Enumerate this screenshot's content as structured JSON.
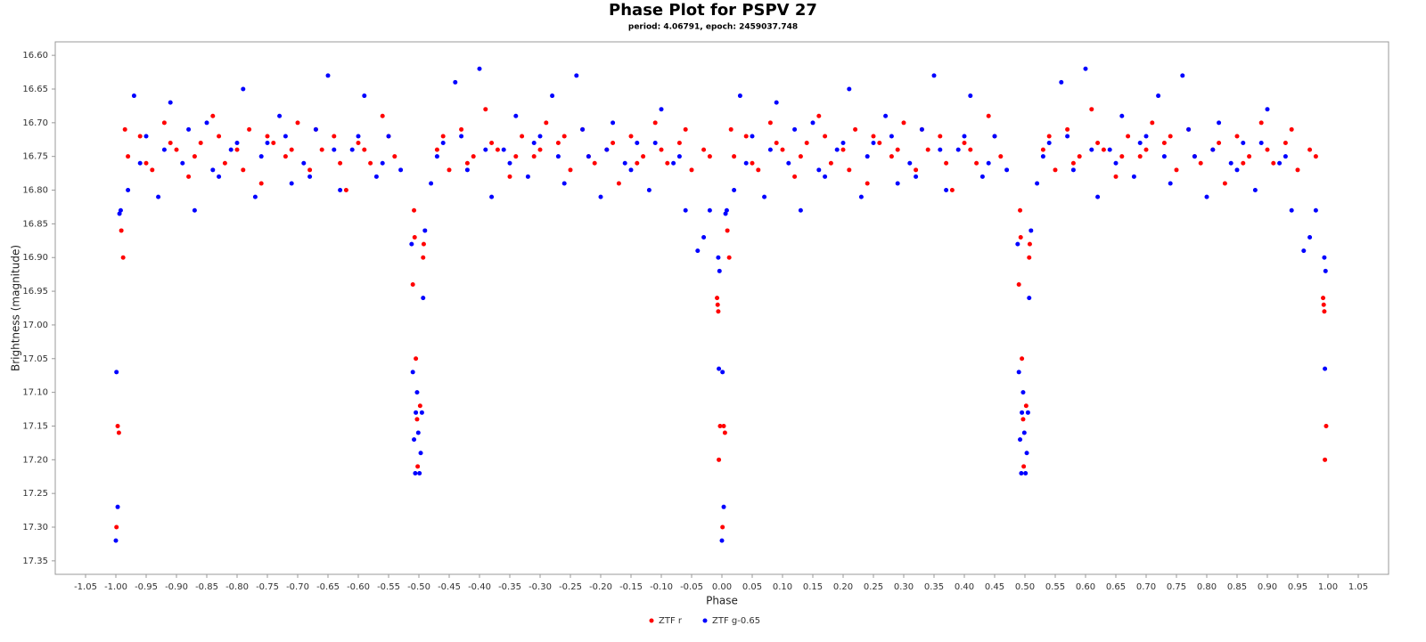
{
  "chart_data": {
    "type": "scatter",
    "title": "Phase Plot for PSPV 27",
    "subtitle": "period: 4.06791, epoch: 2459037.748",
    "x_label": "Phase",
    "y_label": "Brightness (magnitude)",
    "xlim": [
      -1.1,
      1.1
    ],
    "ylim": [
      16.58,
      17.37
    ],
    "y_inverted": true,
    "grid": false,
    "legend": "bottom",
    "xticks": [
      -1.05,
      {
        "value": -1,
        "label": "-1.00"
      },
      -0.95,
      {
        "value": -0.9,
        "label": "-0.90"
      },
      -0.85,
      {
        "value": -0.8,
        "label": "-0.80"
      },
      -0.75,
      {
        "value": -0.7,
        "label": "-0.70"
      },
      -0.65,
      {
        "value": -0.6,
        "label": "-0.60"
      },
      -0.55,
      {
        "value": -0.5,
        "label": "-0.50"
      },
      -0.45,
      {
        "value": -0.4,
        "label": "-0.40"
      },
      -0.35,
      {
        "value": -0.3,
        "label": "-0.30"
      },
      -0.25,
      {
        "value": -0.2,
        "label": "-0.20"
      },
      -0.15,
      {
        "value": -0.1,
        "label": "-0.10"
      },
      -0.05,
      {
        "value": 0,
        "label": "0.00"
      },
      0.05,
      {
        "value": 0.1,
        "label": "0.10"
      },
      0.15,
      {
        "value": 0.2,
        "label": "0.20"
      },
      0.25,
      {
        "value": 0.3,
        "label": "0.30"
      },
      0.35,
      {
        "value": 0.4,
        "label": "0.40"
      },
      0.45,
      {
        "value": 0.5,
        "label": "0.50"
      },
      0.55,
      {
        "value": 0.6,
        "label": "0.60"
      },
      0.65,
      {
        "value": 0.7,
        "label": "0.70"
      },
      0.75,
      {
        "value": 0.8,
        "label": "0.80"
      },
      0.85,
      {
        "value": 0.9,
        "label": "0.90"
      },
      0.95,
      {
        "value": 1,
        "label": "1.00"
      },
      1.05
    ],
    "yticks": [
      {
        "value": 16.6,
        "label": "16.60"
      },
      16.65,
      {
        "value": 16.7,
        "label": "16.70"
      },
      16.75,
      {
        "value": 16.8,
        "label": "16.80"
      },
      16.85,
      {
        "value": 16.9,
        "label": "16.90"
      },
      16.95,
      {
        "value": 17,
        "label": "17.00"
      },
      17.05,
      {
        "value": 17.1,
        "label": "17.10"
      },
      17.15,
      {
        "value": 17.2,
        "label": "17.20"
      },
      17.25,
      {
        "value": 17.3,
        "label": "17.30"
      },
      17.35
    ],
    "series": [
      {
        "name": "ZTF r",
        "color": "#ff0000",
        "x": [
          0.001,
          0.003,
          0.005,
          0.009,
          0.012,
          0.992,
          0.993,
          0.994,
          0.995,
          0.997,
          0.49,
          0.492,
          0.493,
          0.495,
          0.497,
          0.498,
          0.502,
          0.507,
          0.508,
          0.02,
          0.04,
          0.06,
          0.08,
          0.1,
          0.12,
          0.14,
          0.16,
          0.18,
          0.2,
          0.22,
          0.24,
          0.26,
          0.28,
          0.3,
          0.32,
          0.34,
          0.36,
          0.38,
          0.4,
          0.42,
          0.44,
          0.46,
          0.53,
          0.55,
          0.57,
          0.59,
          0.61,
          0.63,
          0.65,
          0.67,
          0.69,
          0.71,
          0.73,
          0.75,
          0.77,
          0.79,
          0.81,
          0.83,
          0.85,
          0.87,
          0.89,
          0.91,
          0.93,
          0.95,
          0.97,
          0.05,
          0.09,
          0.13,
          0.17,
          0.21,
          0.25,
          0.29,
          0.33,
          0.37,
          0.41,
          0.45,
          0.54,
          0.58,
          0.62,
          0.66,
          0.7,
          0.74,
          0.78,
          0.82,
          0.86,
          0.9,
          0.94,
          0.98,
          0.015,
          -0.999,
          -0.997,
          -0.995,
          -0.991,
          -0.988,
          -0.008,
          -0.007,
          -0.006,
          -0.005,
          -0.003,
          -0.51,
          -0.508,
          -0.507,
          -0.505,
          -0.503,
          -0.502,
          -0.498,
          -0.493,
          -0.492,
          -0.98,
          -0.96,
          -0.94,
          -0.92,
          -0.9,
          -0.88,
          -0.86,
          -0.84,
          -0.82,
          -0.8,
          -0.78,
          -0.76,
          -0.74,
          -0.72,
          -0.7,
          -0.68,
          -0.66,
          -0.64,
          -0.62,
          -0.6,
          -0.58,
          -0.56,
          -0.54,
          -0.47,
          -0.45,
          -0.43,
          -0.41,
          -0.39,
          -0.37,
          -0.35,
          -0.33,
          -0.31,
          -0.29,
          -0.27,
          -0.25,
          -0.23,
          -0.21,
          -0.19,
          -0.17,
          -0.15,
          -0.13,
          -0.11,
          -0.09,
          -0.07,
          -0.05,
          -0.03,
          -0.95,
          -0.91,
          -0.87,
          -0.83,
          -0.79,
          -0.75,
          -0.71,
          -0.67,
          -0.63,
          -0.59,
          -0.55,
          -0.46,
          -0.42,
          -0.38,
          -0.34,
          -0.3,
          -0.26,
          -0.22,
          -0.18,
          -0.14,
          -0.1,
          -0.06,
          -0.02,
          -0.985
        ],
        "values": [
          17.3,
          17.15,
          17.16,
          16.86,
          16.9,
          16.96,
          16.97,
          16.98,
          17.2,
          17.15,
          16.94,
          16.83,
          16.87,
          17.05,
          17.14,
          17.21,
          17.12,
          16.9,
          16.88,
          16.75,
          16.72,
          16.77,
          16.7,
          16.74,
          16.78,
          16.73,
          16.69,
          16.76,
          16.74,
          16.71,
          16.79,
          16.73,
          16.75,
          16.7,
          16.77,
          16.74,
          16.72,
          16.8,
          16.73,
          16.76,
          16.69,
          16.75,
          16.74,
          16.77,
          16.71,
          16.75,
          16.68,
          16.74,
          16.78,
          16.72,
          16.75,
          16.7,
          16.73,
          16.77,
          16.71,
          16.76,
          16.74,
          16.79,
          16.72,
          16.75,
          16.7,
          16.76,
          16.73,
          16.77,
          16.74,
          16.76,
          16.73,
          16.75,
          16.72,
          16.77,
          16.72,
          16.74,
          16.71,
          16.76,
          16.74,
          16.72,
          16.72,
          16.76,
          16.73,
          16.75,
          16.74,
          16.72,
          16.75,
          16.73,
          16.76,
          16.74,
          16.71,
          16.75,
          16.71,
          17.3,
          17.15,
          17.16,
          16.86,
          16.9,
          16.96,
          16.97,
          16.98,
          17.2,
          17.15,
          16.94,
          16.83,
          16.87,
          17.05,
          17.14,
          17.21,
          17.12,
          16.9,
          16.88,
          16.75,
          16.72,
          16.77,
          16.7,
          16.74,
          16.78,
          16.73,
          16.69,
          16.76,
          16.74,
          16.71,
          16.79,
          16.73,
          16.75,
          16.7,
          16.77,
          16.74,
          16.72,
          16.8,
          16.73,
          16.76,
          16.69,
          16.75,
          16.74,
          16.77,
          16.71,
          16.75,
          16.68,
          16.74,
          16.78,
          16.72,
          16.75,
          16.7,
          16.73,
          16.77,
          16.71,
          16.76,
          16.74,
          16.79,
          16.72,
          16.75,
          16.7,
          16.76,
          16.73,
          16.77,
          16.74,
          16.76,
          16.73,
          16.75,
          16.72,
          16.77,
          16.72,
          16.74,
          16.71,
          16.76,
          16.74,
          16.72,
          16.72,
          16.76,
          16.73,
          16.75,
          16.74,
          16.72,
          16.75,
          16.73,
          16.76,
          16.74,
          16.71,
          16.75,
          16.71
        ]
      },
      {
        "name": "ZTF g-0.65",
        "color": "#0000ff",
        "x": [
          0,
          0.003,
          0.001,
          0.008,
          0.006,
          0.995,
          0.996,
          0.994,
          0.98,
          0.97,
          0.96,
          0.488,
          0.49,
          0.492,
          0.494,
          0.495,
          0.497,
          0.499,
          0.501,
          0.503,
          0.505,
          0.507,
          0.51,
          0.02,
          0.03,
          0.05,
          0.07,
          0.09,
          0.11,
          0.13,
          0.15,
          0.17,
          0.19,
          0.21,
          0.23,
          0.25,
          0.27,
          0.29,
          0.31,
          0.33,
          0.35,
          0.37,
          0.39,
          0.41,
          0.43,
          0.45,
          0.47,
          0.52,
          0.54,
          0.56,
          0.58,
          0.6,
          0.62,
          0.64,
          0.66,
          0.68,
          0.7,
          0.72,
          0.74,
          0.76,
          0.78,
          0.8,
          0.82,
          0.84,
          0.86,
          0.88,
          0.9,
          0.92,
          0.94,
          0.04,
          0.08,
          0.12,
          0.16,
          0.2,
          0.24,
          0.28,
          0.32,
          0.36,
          0.4,
          0.44,
          0.53,
          0.57,
          0.61,
          0.65,
          0.69,
          0.73,
          0.77,
          0.81,
          0.85,
          0.89,
          0.93,
          -1,
          -0.997,
          -0.999,
          -0.992,
          -0.994,
          -0.005,
          -0.004,
          -0.006,
          -0.02,
          -0.03,
          -0.04,
          -0.512,
          -0.51,
          -0.508,
          -0.506,
          -0.505,
          -0.503,
          -0.501,
          -0.499,
          -0.497,
          -0.495,
          -0.493,
          -0.49,
          -0.98,
          -0.97,
          -0.95,
          -0.93,
          -0.91,
          -0.89,
          -0.87,
          -0.85,
          -0.83,
          -0.81,
          -0.79,
          -0.77,
          -0.75,
          -0.73,
          -0.71,
          -0.69,
          -0.67,
          -0.65,
          -0.63,
          -0.61,
          -0.59,
          -0.57,
          -0.55,
          -0.53,
          -0.48,
          -0.46,
          -0.44,
          -0.42,
          -0.4,
          -0.38,
          -0.36,
          -0.34,
          -0.32,
          -0.3,
          -0.28,
          -0.26,
          -0.24,
          -0.22,
          -0.2,
          -0.18,
          -0.16,
          -0.14,
          -0.12,
          -0.1,
          -0.08,
          -0.06,
          -0.96,
          -0.92,
          -0.88,
          -0.84,
          -0.8,
          -0.76,
          -0.72,
          -0.68,
          -0.64,
          -0.6,
          -0.56,
          -0.47,
          -0.43,
          -0.39,
          -0.35,
          -0.31,
          -0.27,
          -0.23,
          -0.19,
          -0.15,
          -0.11,
          -0.07
        ],
        "values": [
          17.32,
          17.27,
          17.07,
          16.83,
          16.835,
          17.065,
          16.92,
          16.9,
          16.83,
          16.87,
          16.89,
          16.88,
          17.07,
          17.17,
          17.22,
          17.13,
          17.1,
          17.16,
          17.22,
          17.19,
          17.13,
          16.96,
          16.86,
          16.8,
          16.66,
          16.72,
          16.81,
          16.67,
          16.76,
          16.83,
          16.7,
          16.78,
          16.74,
          16.65,
          16.81,
          16.73,
          16.69,
          16.79,
          16.76,
          16.71,
          16.63,
          16.8,
          16.74,
          16.66,
          16.78,
          16.72,
          16.77,
          16.79,
          16.73,
          16.64,
          16.77,
          16.62,
          16.81,
          16.74,
          16.69,
          16.78,
          16.72,
          16.66,
          16.79,
          16.63,
          16.75,
          16.81,
          16.7,
          16.76,
          16.73,
          16.8,
          16.68,
          16.76,
          16.83,
          16.76,
          16.74,
          16.71,
          16.77,
          16.73,
          16.75,
          16.72,
          16.78,
          16.74,
          16.72,
          16.76,
          16.75,
          16.72,
          16.74,
          16.76,
          16.73,
          16.75,
          16.71,
          16.74,
          16.77,
          16.73,
          16.75,
          17.32,
          17.27,
          17.07,
          16.83,
          16.835,
          17.065,
          16.92,
          16.9,
          16.83,
          16.87,
          16.89,
          16.88,
          17.07,
          17.17,
          17.22,
          17.13,
          17.1,
          17.16,
          17.22,
          17.19,
          17.13,
          16.96,
          16.86,
          16.8,
          16.66,
          16.72,
          16.81,
          16.67,
          16.76,
          16.83,
          16.7,
          16.78,
          16.74,
          16.65,
          16.81,
          16.73,
          16.69,
          16.79,
          16.76,
          16.71,
          16.63,
          16.8,
          16.74,
          16.66,
          16.78,
          16.72,
          16.77,
          16.79,
          16.73,
          16.64,
          16.77,
          16.62,
          16.81,
          16.74,
          16.69,
          16.78,
          16.72,
          16.66,
          16.79,
          16.63,
          16.75,
          16.81,
          16.7,
          16.76,
          16.73,
          16.8,
          16.68,
          16.76,
          16.83,
          16.76,
          16.74,
          16.71,
          16.77,
          16.73,
          16.75,
          16.72,
          16.78,
          16.74,
          16.72,
          16.76,
          16.75,
          16.72,
          16.74,
          16.76,
          16.73,
          16.75,
          16.71,
          16.74,
          16.77,
          16.73,
          16.75
        ]
      }
    ]
  }
}
